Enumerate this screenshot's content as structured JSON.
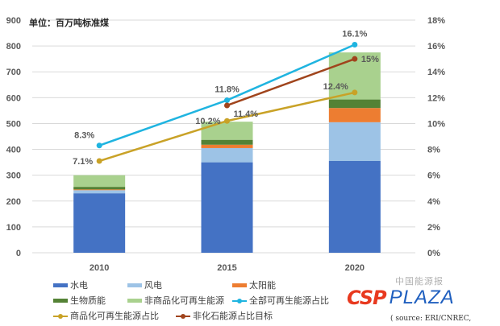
{
  "chart_data": {
    "type": "bar",
    "stacked": true,
    "unit_label": "单位：百万吨标准煤",
    "categories": [
      "2010",
      "2015",
      "2020"
    ],
    "y_left": {
      "min": 0,
      "max": 900,
      "step": 100,
      "ticks": [
        "0",
        "100",
        "200",
        "300",
        "400",
        "500",
        "600",
        "700",
        "800",
        "900"
      ]
    },
    "y_right": {
      "min": 0,
      "max": 18,
      "step": 2,
      "ticks": [
        "0%",
        "2%",
        "4%",
        "6%",
        "8%",
        "10%",
        "12%",
        "14%",
        "16%",
        "18%"
      ]
    },
    "grid": true,
    "series": [
      {
        "name": "水电",
        "kind": "bar",
        "color": "#4472c4",
        "values": [
          230,
          350,
          355
        ]
      },
      {
        "name": "风电",
        "kind": "bar",
        "color": "#9dc3e6",
        "values": [
          12,
          55,
          150
        ]
      },
      {
        "name": "太阳能",
        "kind": "bar",
        "color": "#ed7d31",
        "values": [
          3,
          13,
          55
        ]
      },
      {
        "name": "生物质能",
        "kind": "bar",
        "color": "#548235",
        "values": [
          10,
          19,
          33
        ]
      },
      {
        "name": "非商品化可再生能源",
        "kind": "bar",
        "color": "#a9d18e",
        "values": [
          45,
          70,
          182
        ]
      },
      {
        "name": "全部可再生能源占比",
        "kind": "line",
        "axis": "right",
        "color": "#1fb4e0",
        "x": [
          "2010",
          "2015",
          "2020"
        ],
        "values": [
          8.3,
          11.8,
          16.1
        ],
        "labels": [
          "8.3%",
          "11.8%",
          "16.1%"
        ]
      },
      {
        "name": "商品化可再生能源占比",
        "kind": "line",
        "axis": "right",
        "color": "#c9a227",
        "x": [
          "2010",
          "2015",
          "2020"
        ],
        "values": [
          7.1,
          10.2,
          12.4
        ],
        "labels": [
          "7.1%",
          "10.2%",
          "12.4%"
        ]
      },
      {
        "name": "非化石能源占比目标",
        "kind": "line",
        "axis": "right",
        "color": "#a0441c",
        "x": [
          "2015",
          "2020"
        ],
        "values": [
          11.4,
          15
        ],
        "labels": [
          "11.4%",
          "15%"
        ]
      }
    ],
    "legend_position": "bottom"
  },
  "legend": [
    {
      "label": "水电",
      "type": "bar",
      "color": "#4472c4"
    },
    {
      "label": "风电",
      "type": "bar",
      "color": "#9dc3e6"
    },
    {
      "label": "太阳能",
      "type": "bar",
      "color": "#ed7d31"
    },
    {
      "label": "生物质能",
      "type": "bar",
      "color": "#548235"
    },
    {
      "label": "非商品化可再生能源",
      "type": "bar",
      "color": "#a9d18e"
    },
    {
      "label": "全部可再生能源占比",
      "type": "line",
      "color": "#1fb4e0"
    },
    {
      "label": "商品化可再生能源占比",
      "type": "line",
      "color": "#c9a227"
    },
    {
      "label": "非化石能源占比目标",
      "type": "line",
      "color": "#a0441c"
    }
  ],
  "watermark": {
    "brand_a": "CSP",
    "brand_b": "PLAZA",
    "cn_text": "中国能源报"
  },
  "source": "( source: ERI/CNREC,"
}
